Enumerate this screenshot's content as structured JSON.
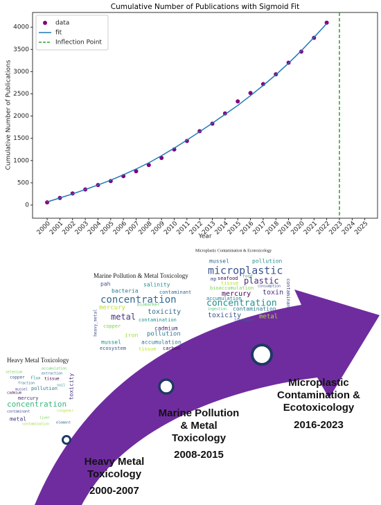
{
  "chart_data": {
    "type": "line",
    "title": "Cumulative Number of Publications with Sigmoid Fit",
    "x_label": "Year",
    "y_label": "Cumulative Number of Publications",
    "x": [
      2000,
      2001,
      2002,
      2003,
      2004,
      2005,
      2006,
      2007,
      2008,
      2009,
      2010,
      2011,
      2012,
      2013,
      2014,
      2015,
      2016,
      2017,
      2018,
      2019,
      2020,
      2021,
      2022
    ],
    "series": [
      {
        "name": "data",
        "style": "markers",
        "color": "#800080",
        "values": [
          60,
          160,
          260,
          350,
          450,
          540,
          650,
          760,
          900,
          1060,
          1250,
          1440,
          1660,
          1830,
          2060,
          2330,
          2520,
          2720,
          2940,
          3200,
          3450,
          3760,
          4100
        ]
      },
      {
        "name": "fit",
        "style": "line",
        "color": "#1f77b4",
        "values": [
          70,
          160,
          250,
          350,
          450,
          560,
          680,
          810,
          950,
          1110,
          1280,
          1460,
          1650,
          1840,
          2040,
          2240,
          2460,
          2690,
          2930,
          3190,
          3470,
          3770,
          4080
        ]
      },
      {
        "name": "Inflection Point",
        "style": "vline",
        "color": "#2ca02c",
        "x": 2023
      }
    ],
    "xlim": [
      1998.85,
      2026
    ],
    "xticks": [
      2000,
      2001,
      2002,
      2003,
      2004,
      2005,
      2006,
      2007,
      2008,
      2009,
      2010,
      2011,
      2012,
      2013,
      2014,
      2015,
      2016,
      2017,
      2018,
      2019,
      2020,
      2021,
      2022,
      2023,
      2024,
      2025
    ],
    "ylim": [
      -296,
      4330
    ],
    "yticks": [
      0,
      500,
      1000,
      1500,
      2000,
      2500,
      3000,
      3500,
      4000
    ],
    "legend": "upper left",
    "grid": false
  },
  "diagram": {
    "clouds": [
      {
        "title": "Heavy Metal Toxicology",
        "words": [
          "accumulation",
          "selenium",
          "extraction",
          "copper",
          "flux",
          "tissue",
          "fraction",
          "mussel",
          "cadmium",
          "soil",
          "pollution",
          "toxicity",
          "mercury",
          "concentration",
          "contaminant",
          "congener",
          "metal",
          "liver",
          "element",
          "contamination"
        ]
      },
      {
        "title": "Marine Pollution & Metal Toxicology",
        "words": [
          "pah",
          "salinity",
          "bacteria",
          "contaminant",
          "concentration",
          "mercury",
          "biomarker",
          "metal",
          "toxicity",
          "contamination",
          "heavy_metal",
          "copper",
          "cadmium",
          "iron",
          "pollution",
          "mussel",
          "accumulation",
          "ecosystem",
          "tissue",
          "carbon"
        ]
      },
      {
        "title": "Microplastic Contamination & Ecotoxicology",
        "words": [
          "mussel",
          "pollution",
          "microplastic",
          "seafood",
          "food",
          "mp",
          "plastic",
          "tissue",
          "consumption",
          "bioaccumulation",
          "mercury",
          "toxin",
          "accumulation",
          "contaminant",
          "concentration",
          "ingestion",
          "toxicity",
          "contamination",
          "metal",
          "freshwater"
        ]
      }
    ],
    "stages": [
      {
        "lines": [
          "Heavy Metal",
          "Toxicology"
        ],
        "period": "2000-2007"
      },
      {
        "lines": [
          "Marine Pollution",
          "& Metal",
          "Toxicology"
        ],
        "period": "2008-2015"
      },
      {
        "lines": [
          "Microplastic",
          "Contamination &",
          "Ecotoxicology"
        ],
        "period": "2016-2023"
      }
    ]
  }
}
